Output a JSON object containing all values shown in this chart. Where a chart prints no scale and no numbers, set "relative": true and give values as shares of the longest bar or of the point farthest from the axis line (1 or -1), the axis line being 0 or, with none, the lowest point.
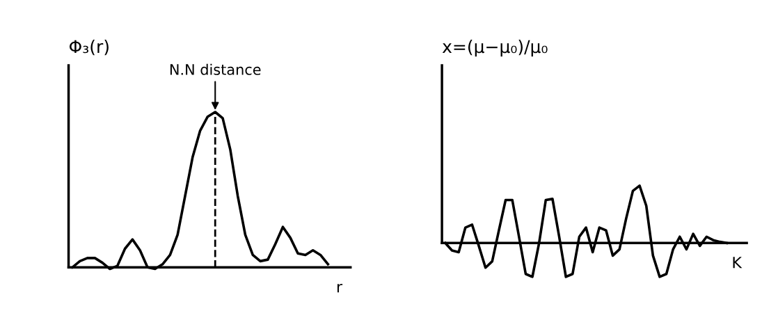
{
  "chart_data": [
    {
      "type": "line",
      "relative": true,
      "ylabel": "Φ₃(r)",
      "xlabel": "r",
      "tick_labels": false,
      "marker": "none",
      "line_style": "solid",
      "categories": [
        null,
        null,
        null,
        null,
        null,
        null,
        null,
        null,
        null,
        null,
        null,
        null,
        null,
        null,
        null,
        null,
        null,
        null,
        null,
        null,
        null,
        null,
        null,
        null,
        null,
        null,
        null,
        null,
        null,
        null,
        null,
        null,
        null,
        null,
        null
      ],
      "series": [
        {
          "color": "#000000",
          "values": [
            0,
            0.04,
            0.06,
            0.06,
            0.03,
            -0.01,
            0.01,
            0.12,
            0.18,
            0.11,
            0,
            -0.01,
            0.02,
            0.08,
            0.21,
            0.46,
            0.71,
            0.88,
            0.97,
            1,
            0.96,
            0.76,
            0.46,
            0.21,
            0.08,
            0.04,
            0.05,
            0.15,
            0.26,
            0.19,
            0.09,
            0.08,
            0.11,
            0.08,
            0.02
          ]
        }
      ],
      "annotations": [
        "N.N distance"
      ]
    },
    {
      "type": "line",
      "relative": true,
      "ylabel": "x=(μ−μ₀)/μ₀",
      "xlabel": "K",
      "tick_labels": false,
      "marker": "none",
      "line_style": "solid",
      "categories": [
        null,
        null,
        null,
        null,
        null,
        null,
        null,
        null,
        null,
        null,
        null,
        null,
        null,
        null,
        null,
        null,
        null,
        null,
        null,
        null,
        null,
        null,
        null,
        null,
        null,
        null,
        null,
        null,
        null,
        null,
        null,
        null,
        null,
        null,
        null,
        null,
        null,
        null,
        null,
        null,
        null,
        null,
        null
      ],
      "series": [
        {
          "color": "#000000",
          "values": [
            0,
            -0.13,
            -0.16,
            0.27,
            0.32,
            -0.05,
            -0.43,
            -0.32,
            0.22,
            0.75,
            0.75,
            0.11,
            -0.54,
            -0.59,
            0,
            0.75,
            0.77,
            0.11,
            -0.59,
            -0.54,
            0.11,
            0.27,
            -0.16,
            0.27,
            0.22,
            -0.22,
            -0.11,
            0.43,
            0.91,
            1,
            0.65,
            -0.22,
            -0.59,
            -0.54,
            -0.11,
            0.11,
            -0.11,
            0.16,
            -0.05,
            0.11,
            0.05,
            0.02,
            0
          ]
        }
      ]
    }
  ]
}
